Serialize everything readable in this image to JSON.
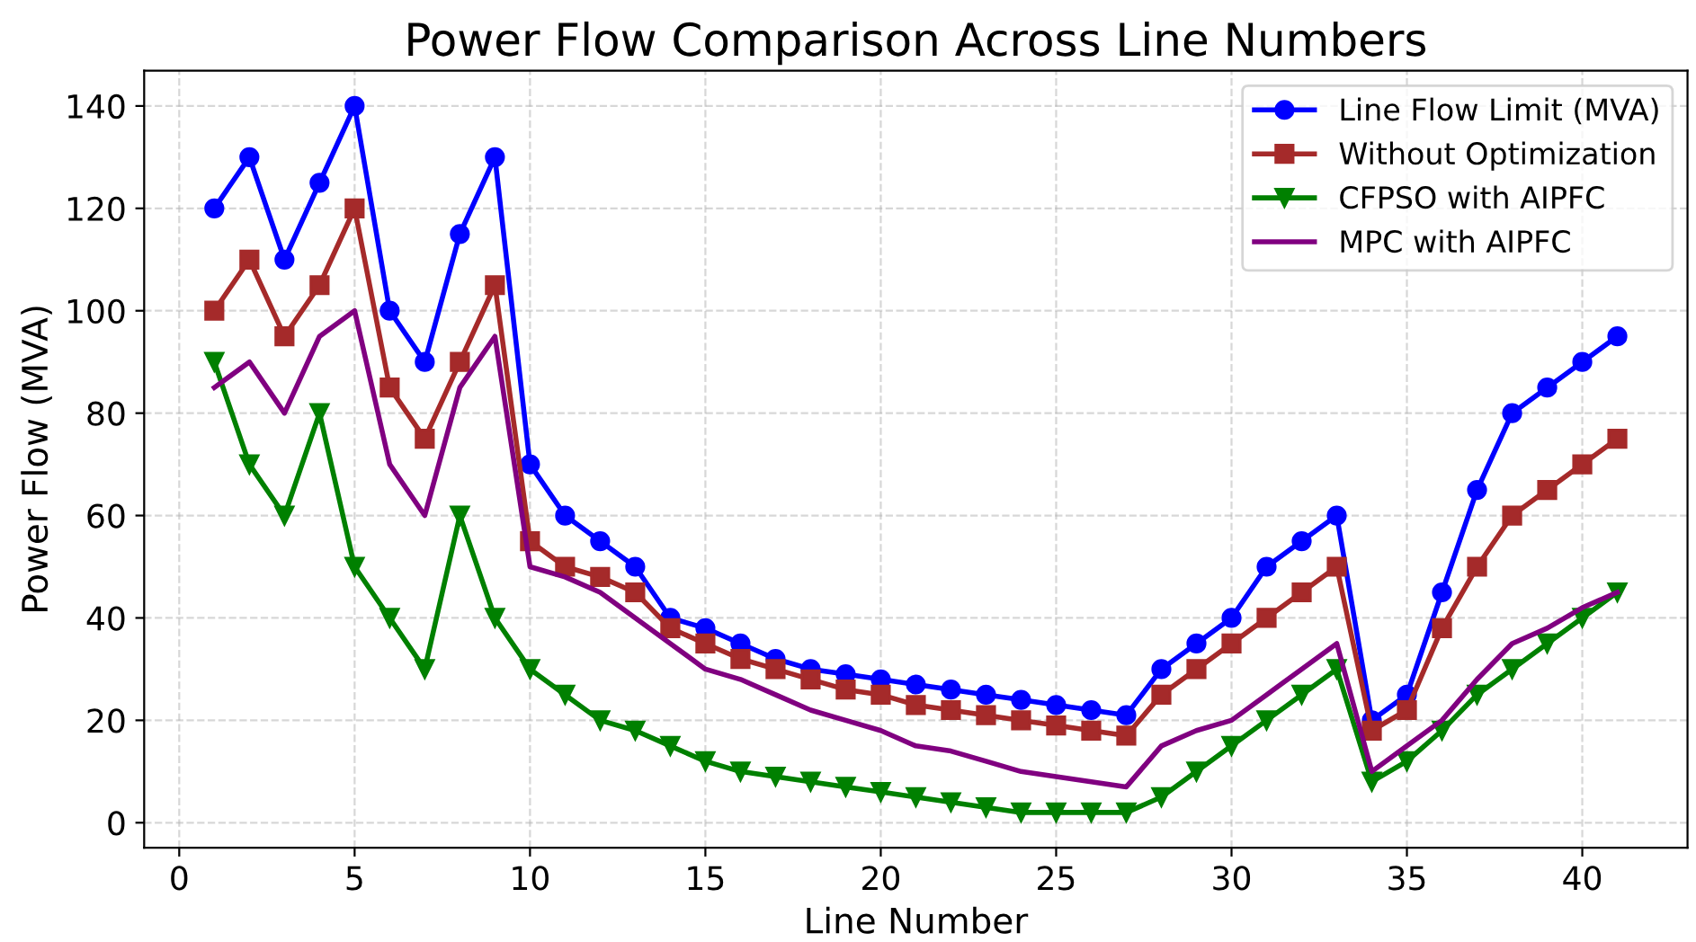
{
  "chart_data": {
    "type": "line",
    "title": "Power Flow Comparison Across Line Numbers",
    "xlabel": "Line Number",
    "ylabel": "Power Flow (MVA)",
    "x": [
      1,
      2,
      3,
      4,
      5,
      6,
      7,
      8,
      9,
      10,
      11,
      12,
      13,
      14,
      15,
      16,
      17,
      18,
      19,
      20,
      21,
      22,
      23,
      24,
      25,
      26,
      27,
      28,
      29,
      30,
      31,
      32,
      33,
      34,
      35,
      36,
      37,
      38,
      39,
      40,
      41
    ],
    "series": [
      {
        "name": "Line Flow Limit (MVA)",
        "color": "#0000ff",
        "marker": "circle",
        "values": [
          120,
          130,
          110,
          125,
          140,
          100,
          90,
          115,
          130,
          70,
          60,
          55,
          50,
          40,
          38,
          35,
          32,
          30,
          29,
          28,
          27,
          26,
          25,
          24,
          23,
          22,
          21,
          30,
          35,
          40,
          50,
          55,
          60,
          20,
          25,
          45,
          65,
          80,
          85,
          90,
          95
        ]
      },
      {
        "name": "Without Optimization",
        "color": "#a52a2a",
        "marker": "square",
        "values": [
          100,
          110,
          95,
          105,
          120,
          85,
          75,
          90,
          105,
          55,
          50,
          48,
          45,
          38,
          35,
          32,
          30,
          28,
          26,
          25,
          23,
          22,
          21,
          20,
          19,
          18,
          17,
          25,
          30,
          35,
          40,
          45,
          50,
          18,
          22,
          38,
          50,
          60,
          65,
          70,
          75
        ]
      },
      {
        "name": "CFPSO with AIPFC",
        "color": "#008000",
        "marker": "triangle",
        "values": [
          90,
          70,
          60,
          80,
          50,
          40,
          30,
          60,
          40,
          30,
          25,
          20,
          18,
          15,
          12,
          10,
          9,
          8,
          7,
          6,
          5,
          4,
          3,
          2,
          2,
          2,
          2,
          5,
          10,
          15,
          20,
          25,
          30,
          8,
          12,
          18,
          25,
          30,
          35,
          40,
          45
        ]
      },
      {
        "name": "MPC with AIPFC",
        "color": "#800080",
        "marker": "none",
        "values": [
          85,
          90,
          80,
          95,
          100,
          70,
          60,
          85,
          95,
          50,
          48,
          45,
          40,
          35,
          30,
          28,
          25,
          22,
          20,
          18,
          15,
          14,
          12,
          10,
          9,
          8,
          7,
          15,
          18,
          20,
          25,
          30,
          35,
          10,
          15,
          20,
          28,
          35,
          38,
          42,
          45
        ]
      }
    ],
    "xlim": [
      -1,
      43
    ],
    "ylim": [
      -4.9,
      146.9
    ],
    "xticks": [
      0,
      5,
      10,
      15,
      20,
      25,
      30,
      35,
      40
    ],
    "yticks": [
      0,
      20,
      40,
      60,
      80,
      100,
      120,
      140
    ],
    "grid": true,
    "legend": "top right",
    "line_style": "solid"
  }
}
